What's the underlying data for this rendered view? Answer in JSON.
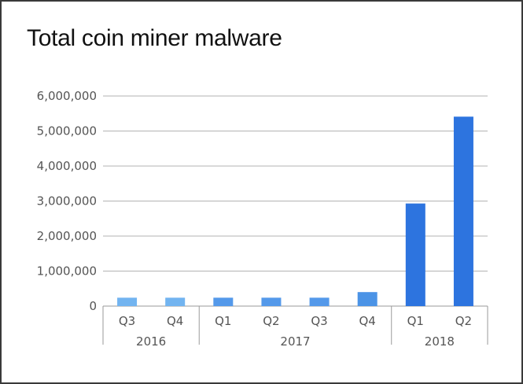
{
  "chart_data": {
    "type": "bar",
    "title": "Total coin miner malware",
    "categories": [
      "Q3",
      "Q4",
      "Q1",
      "Q2",
      "Q3",
      "Q4",
      "Q1",
      "Q2"
    ],
    "groups": [
      {
        "label": "2016",
        "count": 2
      },
      {
        "label": "2017",
        "count": 4
      },
      {
        "label": "2018",
        "count": 2
      }
    ],
    "values": [
      240000,
      240000,
      240000,
      240000,
      240000,
      400000,
      2930000,
      5410000
    ],
    "bar_colors": [
      "#72b4f0",
      "#72b4f0",
      "#5499ea",
      "#5499ea",
      "#5499ea",
      "#4b93e6",
      "#2d74df",
      "#2d74df"
    ],
    "ylim": [
      0,
      6000000
    ],
    "yticks": [
      0,
      1000000,
      2000000,
      3000000,
      4000000,
      5000000,
      6000000
    ],
    "ytick_labels": [
      "0",
      "1,000,000",
      "2,000,000",
      "3,000,000",
      "4,000,000",
      "5,000,000",
      "6,000,000"
    ],
    "xlabel": "",
    "ylabel": "",
    "grid": true,
    "legend": "none"
  }
}
